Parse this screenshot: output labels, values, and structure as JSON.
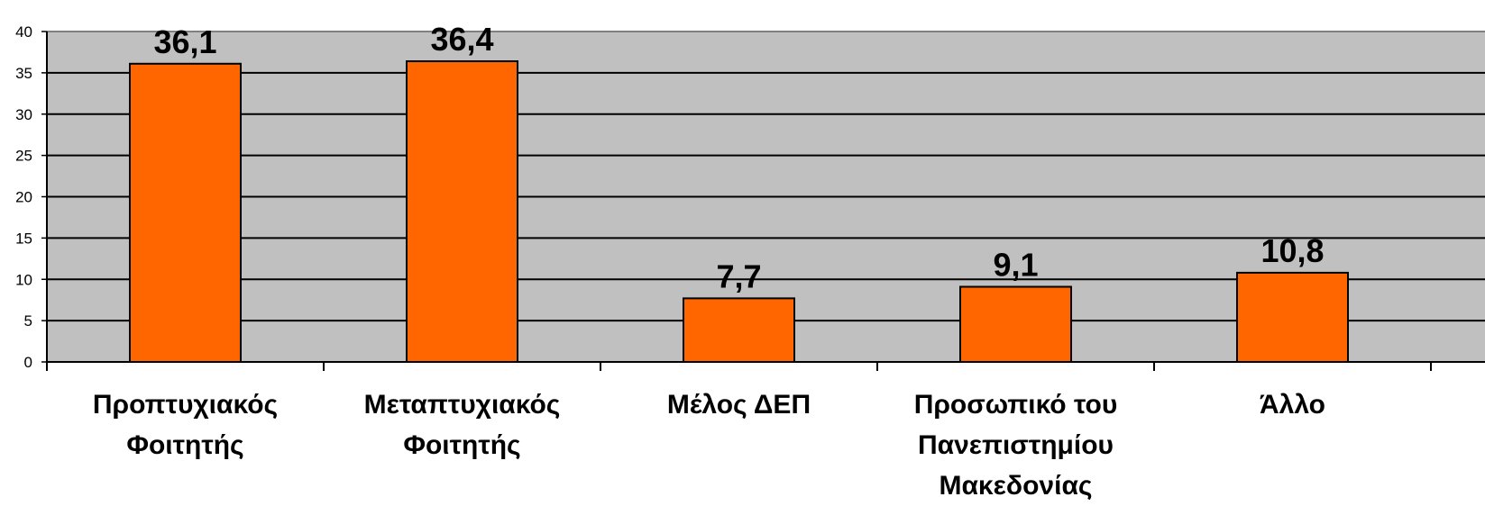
{
  "chart_data": {
    "type": "bar",
    "categories": [
      [
        "Προπτυχιακός",
        "Φοιτητής"
      ],
      [
        "Μεταπτυχιακός",
        "Φοιτητής"
      ],
      [
        "Μέλος ΔΕΠ"
      ],
      [
        "Προσωπικό του",
        "Πανεπιστημίου",
        "Μακεδονίας"
      ],
      [
        "Άλλο"
      ]
    ],
    "values": [
      36.1,
      36.4,
      7.7,
      9.1,
      10.8
    ],
    "data_labels": [
      "36,1",
      "36,4",
      "7,7",
      "9,1",
      "10,8"
    ],
    "ylim": [
      0,
      40
    ],
    "yticks": [
      0,
      5,
      10,
      15,
      20,
      25,
      30,
      35,
      40
    ],
    "title": "",
    "xlabel": "",
    "ylabel": "",
    "grid": true,
    "colors": {
      "bar": "#ff6600",
      "plot_background": "#c0c0c0",
      "gridline": "#000000"
    }
  }
}
